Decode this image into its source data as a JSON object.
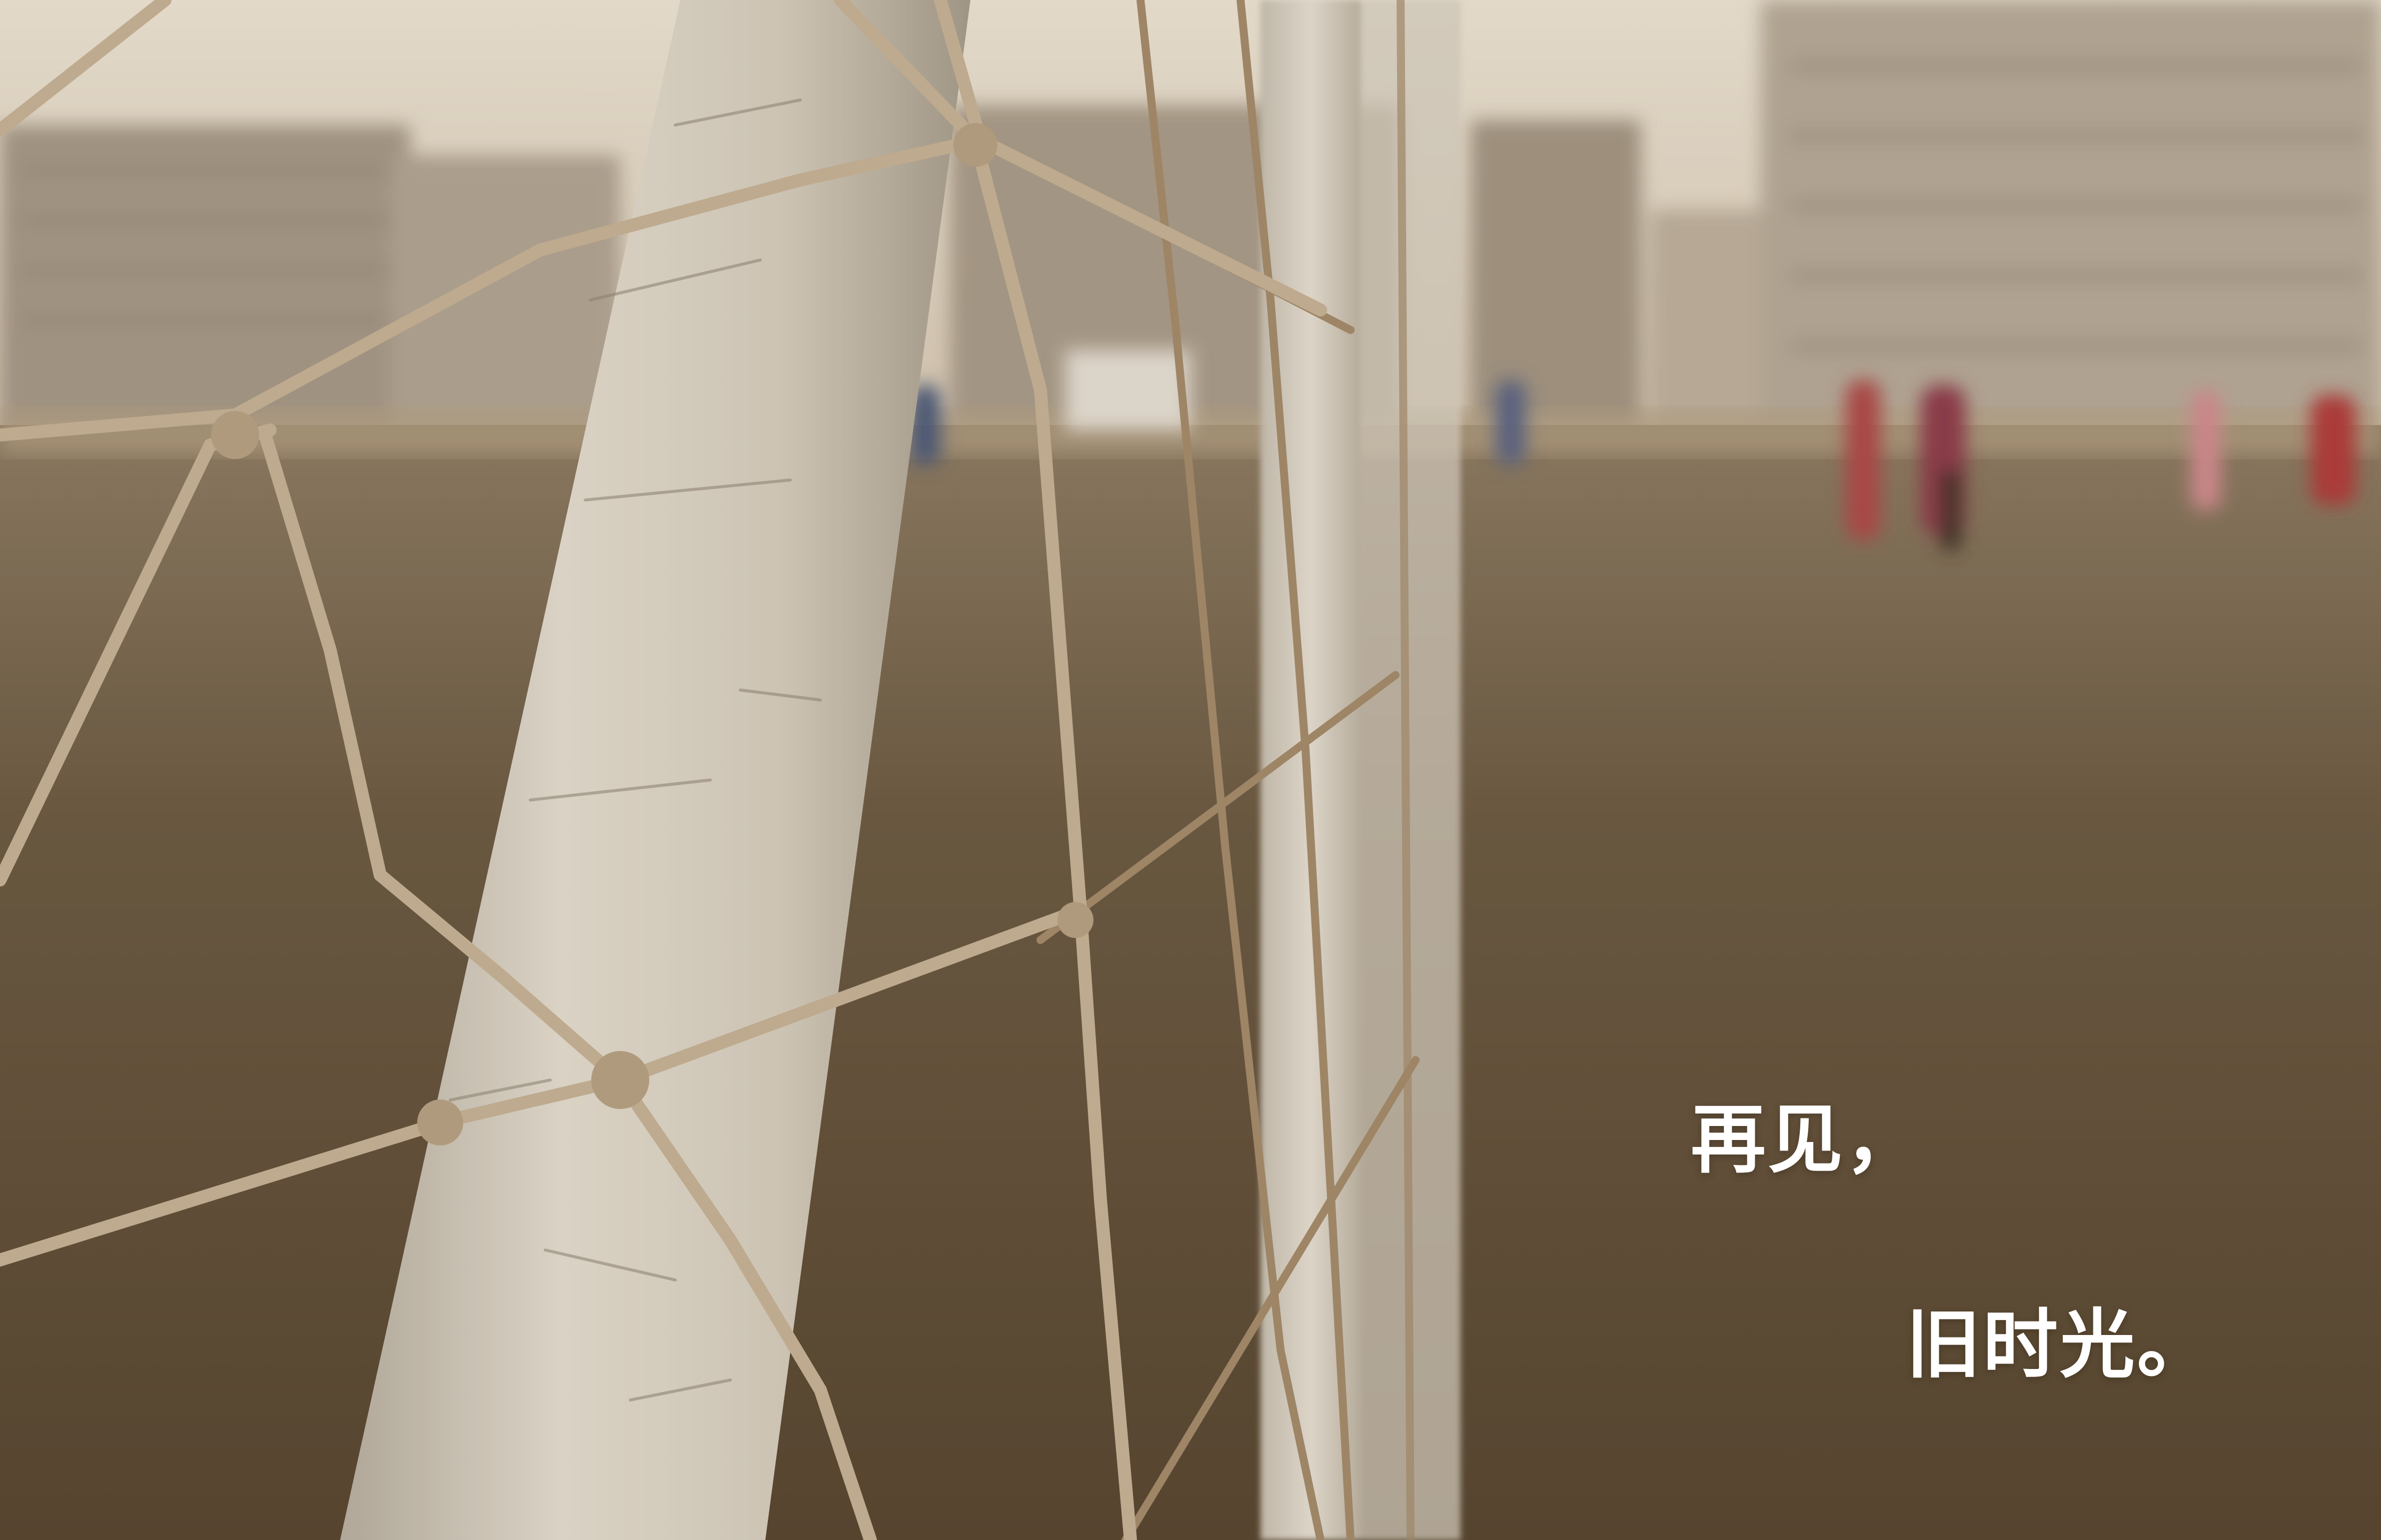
{
  "photo": {
    "subject": "soccer-goal-net-closeup",
    "palette": {
      "sky": "#ece2d3",
      "haze": "#c7b6a0",
      "field_far": "#87765f",
      "field_near": "#5d4b35",
      "post": "#ddd5c7",
      "rope_near": "#cbb79a",
      "rope_far": "#9a8164"
    }
  },
  "caption": {
    "line1": "再见，",
    "line2": "旧时光。"
  }
}
